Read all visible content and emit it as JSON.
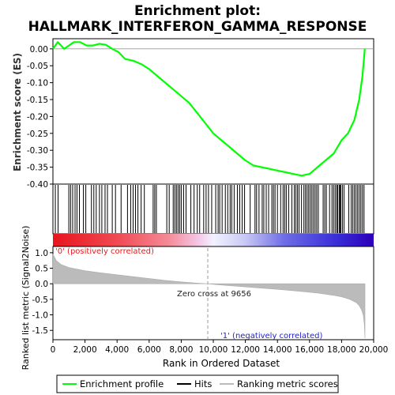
{
  "chart_data": {
    "type": "line",
    "title_line1": "Enrichment plot:",
    "title_line2": "HALLMARK_INTERFERON_GAMMA_RESPONSE",
    "es_panel": {
      "ylabel": "Enrichment score (ES)",
      "ylim": [
        -0.4,
        0.03
      ],
      "yticks": [
        "0.00",
        "-0.05",
        "-0.10",
        "-0.15",
        "-0.20",
        "-0.25",
        "-0.30",
        "-0.35",
        "-0.40"
      ],
      "series": [
        {
          "name": "Enrichment profile",
          "color": "#00ff00",
          "x": [
            0,
            300,
            700,
            1000,
            1300,
            1700,
            2100,
            2500,
            2900,
            3300,
            3700,
            4100,
            4500,
            5000,
            5500,
            6000,
            6500,
            7000,
            7500,
            8000,
            8500,
            9000,
            9500,
            10000,
            10500,
            11000,
            11500,
            12000,
            12500,
            13000,
            13500,
            14000,
            14500,
            15000,
            15500,
            16000,
            16500,
            17000,
            17500,
            18000,
            18400,
            18800,
            19100,
            19300,
            19450
          ],
          "y": [
            0.0,
            0.02,
            0.0,
            0.01,
            0.02,
            0.02,
            0.01,
            0.01,
            0.015,
            0.012,
            0.0,
            -0.01,
            -0.03,
            -0.035,
            -0.045,
            -0.06,
            -0.08,
            -0.1,
            -0.12,
            -0.14,
            -0.16,
            -0.19,
            -0.22,
            -0.25,
            -0.27,
            -0.29,
            -0.31,
            -0.33,
            -0.345,
            -0.35,
            -0.355,
            -0.36,
            -0.365,
            -0.37,
            -0.375,
            -0.37,
            -0.35,
            -0.33,
            -0.31,
            -0.27,
            -0.25,
            -0.21,
            -0.15,
            -0.08,
            0.0
          ]
        }
      ]
    },
    "ranking_panel": {
      "ylabel": "Ranked list metric (Signal2Noise)",
      "ylim": [
        -1.8,
        1.2
      ],
      "yticks": [
        "1.0",
        "0.5",
        "0.0",
        "-0.5",
        "-1.0",
        "-1.5"
      ],
      "label_pos": "'0' (positively correlated)",
      "label_neg": "'1' (negatively correlated)",
      "zero_cross_label": "Zero cross at 9656",
      "zero_cross": 9656,
      "metric_x": [
        0,
        200,
        500,
        1000,
        2000,
        3000,
        4000,
        5000,
        6000,
        7000,
        8000,
        9000,
        9656,
        10500,
        11500,
        12500,
        13500,
        14500,
        15500,
        16500,
        17500,
        18000,
        18500,
        18900,
        19100,
        19250,
        19350,
        19420,
        19460
      ],
      "metric_y": [
        0.95,
        0.75,
        0.62,
        0.52,
        0.42,
        0.35,
        0.29,
        0.23,
        0.17,
        0.11,
        0.06,
        0.02,
        0.0,
        -0.04,
        -0.08,
        -0.12,
        -0.16,
        -0.2,
        -0.25,
        -0.3,
        -0.37,
        -0.42,
        -0.5,
        -0.6,
        -0.7,
        -0.85,
        -1.0,
        -1.3,
        -1.75
      ]
    },
    "hits": [
      150,
      320,
      990,
      1100,
      1230,
      1380,
      1500,
      1650,
      1900,
      2050,
      2400,
      2550,
      2700,
      2900,
      3050,
      3250,
      3400,
      3700,
      3900,
      4250,
      4650,
      4850,
      5000,
      5150,
      5300,
      5500,
      5700,
      6250,
      6350,
      6450,
      7100,
      7250,
      7500,
      7600,
      7700,
      7800,
      7900,
      8000,
      8150,
      8300,
      8600,
      8800,
      9000,
      9150,
      9400,
      9550,
      9700,
      9900,
      10150,
      10300,
      10400,
      10550,
      10750,
      10900,
      11050,
      11150,
      11300,
      11500,
      11650,
      11800,
      11950,
      12300,
      12600,
      12700,
      12850,
      13050,
      13150,
      13300,
      13450,
      13650,
      13750,
      13850,
      14000,
      14200,
      14350,
      14450,
      14550,
      14700,
      14900,
      15050,
      15150,
      15250,
      15350,
      15500,
      15650,
      15750,
      15850,
      15950,
      16050,
      16150,
      16250,
      16350,
      16450,
      16550,
      16850,
      16950,
      17050,
      17250,
      17400,
      17500,
      17600,
      17700,
      17750,
      17850,
      17900,
      17950,
      18050,
      18150,
      18450,
      18600,
      18700,
      18800,
      18900,
      19000,
      19100,
      19200,
      19300,
      19400
    ],
    "xaxis": {
      "label": "Rank in Ordered Dataset",
      "xlim": [
        0,
        20000
      ],
      "ticks": [
        0,
        2000,
        4000,
        6000,
        8000,
        10000,
        12000,
        14000,
        16000,
        18000,
        20000
      ],
      "tick_labels": [
        "0",
        "2,000",
        "4,000",
        "6,000",
        "8,000",
        "10,000",
        "12,000",
        "14,000",
        "16,000",
        "18,000",
        "20,000"
      ],
      "total": 19460
    },
    "legend": {
      "placement": "bottom",
      "items": [
        {
          "label": "Enrichment profile",
          "color": "#00ff00"
        },
        {
          "label": "Hits",
          "color": "#000000"
        },
        {
          "label": "Ranking metric scores",
          "color": "#bbbbbb"
        }
      ]
    }
  }
}
